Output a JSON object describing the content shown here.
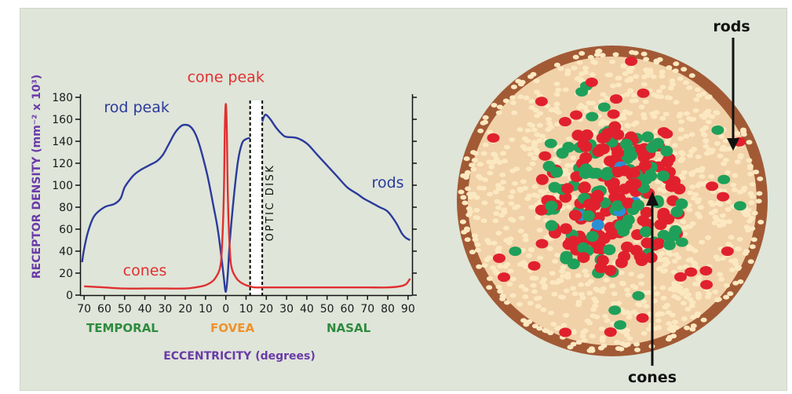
{
  "chart_data": {
    "type": "line",
    "ylabel": "RECEPTOR DENSITY (mm⁻² x 10³)",
    "xlabel": "ECCENTRICITY (degrees)",
    "ylim": [
      0,
      180
    ],
    "xlim": [
      -72,
      92
    ],
    "x_ticks": [
      -70,
      -60,
      -50,
      -40,
      -30,
      -20,
      -10,
      0,
      10,
      20,
      30,
      40,
      50,
      60,
      70,
      80,
      90
    ],
    "x_tick_labels": [
      "70",
      "60",
      "50",
      "40",
      "30",
      "20",
      "10",
      "0",
      "10",
      "20",
      "30",
      "40",
      "50",
      "60",
      "70",
      "80",
      "90"
    ],
    "y_ticks": [
      0,
      20,
      40,
      60,
      80,
      100,
      120,
      140,
      160,
      180
    ],
    "y_tick_labels": [
      "0",
      "20",
      "40",
      "60",
      "80",
      "100",
      "120",
      "140",
      "160",
      "180"
    ],
    "regions": [
      {
        "label": "TEMPORAL",
        "color": "#2e8b3e"
      },
      {
        "label": "FOVEA",
        "color": "#f0922b"
      },
      {
        "label": "NASAL",
        "color": "#2e8b3e"
      }
    ],
    "optic_disk": {
      "x_start": 12,
      "x_end": 18,
      "label": "OPTIC DISK"
    },
    "annotations": [
      {
        "text": "cone peak",
        "x": 0,
        "y": 174,
        "color": "#e03030"
      },
      {
        "text": "rod peak",
        "x": -20,
        "y": 152,
        "color": "#2b3a9b"
      },
      {
        "text": "rods",
        "x": 80,
        "y": 98,
        "color": "#2b3a9b"
      },
      {
        "text": "cones",
        "x": -40,
        "y": 18,
        "color": "#e03030"
      }
    ],
    "series": [
      {
        "name": "rods",
        "color": "#2b3a9b",
        "x": [
          -71,
          -70,
          -68,
          -65,
          -60,
          -55,
          -52,
          -50,
          -47,
          -45,
          -42,
          -38,
          -34,
          -31,
          -28,
          -25,
          -22,
          -20,
          -18,
          -16,
          -14,
          -12,
          -9,
          -6,
          -4,
          -2,
          -1,
          0,
          1,
          2,
          4,
          6,
          8,
          10,
          12
        ],
        "y": [
          30,
          42,
          58,
          72,
          80,
          83,
          88,
          98,
          106,
          110,
          114,
          118,
          122,
          128,
          138,
          148,
          154,
          155,
          154,
          150,
          142,
          130,
          108,
          80,
          60,
          32,
          16,
          3,
          20,
          50,
          90,
          122,
          138,
          142,
          143
        ]
      },
      {
        "name": "rods-nasal",
        "color": "#2b3a9b",
        "x": [
          18,
          19,
          20,
          22,
          25,
          28,
          30,
          35,
          40,
          45,
          50,
          55,
          60,
          65,
          68,
          72,
          76,
          80,
          84,
          87,
          89,
          91
        ],
        "y": [
          158,
          163,
          164,
          160,
          152,
          146,
          144,
          143,
          138,
          128,
          118,
          108,
          98,
          92,
          88,
          84,
          80,
          76,
          66,
          56,
          52,
          50
        ]
      },
      {
        "name": "cones",
        "color": "#e03030",
        "x": [
          -70,
          -60,
          -50,
          -40,
          -30,
          -20,
          -15,
          -10,
          -7,
          -5,
          -3,
          -2,
          -1,
          -0.5,
          0,
          0.5,
          1,
          2,
          3,
          5,
          7,
          10,
          12,
          14,
          20,
          30,
          40,
          50,
          60,
          70,
          80,
          86,
          89,
          91
        ],
        "y": [
          8,
          7,
          6,
          6,
          6,
          6,
          7,
          9,
          12,
          16,
          24,
          40,
          90,
          150,
          174,
          150,
          90,
          40,
          24,
          16,
          12,
          9,
          8,
          7,
          7,
          7,
          7,
          7,
          7,
          7,
          7,
          8,
          10,
          15
        ]
      }
    ]
  },
  "retina": {
    "labels": {
      "rods": "rods",
      "cones": "cones"
    },
    "colors": {
      "background": "#f1d1a8",
      "rim": "#a25a35",
      "rod": "#fbe8c1",
      "cone_red": "#e1202e",
      "cone_green": "#1fa05a",
      "cone_blue": "#2b8fd6"
    }
  }
}
